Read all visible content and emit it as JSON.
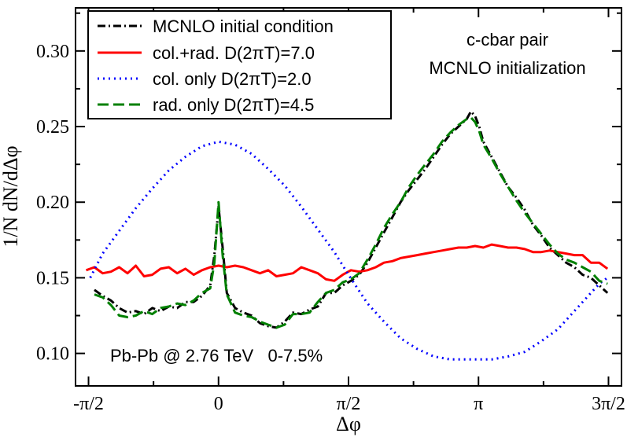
{
  "chart_data": {
    "type": "line",
    "xlabel": "Δφ",
    "ylabel": "1/N dN/dΔφ",
    "xlim": [
      -1.7279,
      4.8695
    ],
    "ylim": [
      0.0785,
      0.3285
    ],
    "x_ticks": [
      {
        "value": -1.5708,
        "label": "-π/2"
      },
      {
        "value": 0,
        "label": "0"
      },
      {
        "value": 1.5708,
        "label": "π/2"
      },
      {
        "value": 3.1416,
        "label": "π"
      },
      {
        "value": 4.7124,
        "label": "3π/2"
      }
    ],
    "y_ticks": [
      {
        "value": 0.1,
        "label": "0.10"
      },
      {
        "value": 0.15,
        "label": "0.15"
      },
      {
        "value": 0.2,
        "label": "0.20"
      },
      {
        "value": 0.25,
        "label": "0.25"
      },
      {
        "value": 0.3,
        "label": "0.30"
      }
    ],
    "annotations": [
      "c-cbar pair",
      "MCNLO initialization",
      "Pb-Pb @ 2.76 TeV   0-7.5%"
    ],
    "series": [
      {
        "name": "MCNLO initial condition",
        "color": "#000000",
        "dash": "dash-dot",
        "x": [
          -1.5,
          -1.4,
          -1.3,
          -1.2,
          -1.1,
          -1.0,
          -0.9,
          -0.8,
          -0.7,
          -0.6,
          -0.5,
          -0.4,
          -0.3,
          -0.2,
          -0.1,
          -0.05,
          0.0,
          0.05,
          0.1,
          0.2,
          0.3,
          0.4,
          0.5,
          0.6,
          0.7,
          0.8,
          0.9,
          1.0,
          1.1,
          1.2,
          1.3,
          1.4,
          1.5,
          1.6,
          1.7,
          1.8,
          1.9,
          2.0,
          2.1,
          2.2,
          2.3,
          2.4,
          2.5,
          2.6,
          2.7,
          2.8,
          2.9,
          3.0,
          3.05,
          3.1,
          3.15,
          3.2,
          3.3,
          3.4,
          3.5,
          3.6,
          3.7,
          3.8,
          3.9,
          4.0,
          4.1,
          4.2,
          4.3,
          4.4,
          4.5,
          4.6,
          4.7
        ],
        "y": [
          0.142,
          0.138,
          0.135,
          0.13,
          0.127,
          0.128,
          0.126,
          0.13,
          0.128,
          0.131,
          0.13,
          0.134,
          0.134,
          0.138,
          0.145,
          0.165,
          0.197,
          0.17,
          0.14,
          0.13,
          0.127,
          0.125,
          0.12,
          0.118,
          0.117,
          0.121,
          0.127,
          0.126,
          0.129,
          0.131,
          0.14,
          0.14,
          0.145,
          0.148,
          0.152,
          0.16,
          0.17,
          0.18,
          0.19,
          0.2,
          0.208,
          0.215,
          0.222,
          0.23,
          0.238,
          0.245,
          0.25,
          0.255,
          0.26,
          0.257,
          0.25,
          0.24,
          0.23,
          0.22,
          0.21,
          0.203,
          0.195,
          0.185,
          0.178,
          0.17,
          0.165,
          0.16,
          0.157,
          0.152,
          0.15,
          0.145,
          0.14
        ]
      },
      {
        "name": "col.+rad. D(2πT)=7.0",
        "color": "#ff0000",
        "dash": "solid",
        "x": [
          -1.6,
          -1.5,
          -1.4,
          -1.3,
          -1.2,
          -1.1,
          -1.0,
          -0.9,
          -0.8,
          -0.7,
          -0.6,
          -0.5,
          -0.4,
          -0.3,
          -0.2,
          -0.1,
          0.0,
          0.1,
          0.2,
          0.3,
          0.4,
          0.5,
          0.6,
          0.7,
          0.8,
          0.9,
          1.0,
          1.1,
          1.2,
          1.3,
          1.4,
          1.5,
          1.6,
          1.7,
          1.8,
          1.9,
          2.0,
          2.1,
          2.2,
          2.3,
          2.4,
          2.5,
          2.6,
          2.7,
          2.8,
          2.9,
          3.0,
          3.1,
          3.2,
          3.3,
          3.4,
          3.5,
          3.6,
          3.7,
          3.8,
          3.9,
          4.0,
          4.1,
          4.2,
          4.3,
          4.4,
          4.5,
          4.6,
          4.7
        ],
        "y": [
          0.155,
          0.157,
          0.153,
          0.154,
          0.157,
          0.153,
          0.158,
          0.151,
          0.152,
          0.156,
          0.157,
          0.153,
          0.156,
          0.152,
          0.155,
          0.157,
          0.158,
          0.157,
          0.158,
          0.157,
          0.155,
          0.153,
          0.155,
          0.151,
          0.152,
          0.153,
          0.157,
          0.155,
          0.153,
          0.149,
          0.148,
          0.152,
          0.155,
          0.154,
          0.155,
          0.157,
          0.16,
          0.161,
          0.163,
          0.164,
          0.165,
          0.166,
          0.167,
          0.168,
          0.169,
          0.17,
          0.17,
          0.171,
          0.17,
          0.172,
          0.171,
          0.17,
          0.17,
          0.169,
          0.167,
          0.167,
          0.168,
          0.167,
          0.166,
          0.165,
          0.165,
          0.16,
          0.16,
          0.156
        ]
      },
      {
        "name": "col. only D(2πT)=2.0",
        "color": "#0000ff",
        "dash": "dotted",
        "x": [
          -1.55,
          -1.4,
          -1.2,
          -1.0,
          -0.8,
          -0.6,
          -0.4,
          -0.2,
          0.0,
          0.2,
          0.4,
          0.6,
          0.8,
          1.0,
          1.2,
          1.4,
          1.5708,
          1.8,
          2.0,
          2.2,
          2.4,
          2.6,
          2.8,
          3.0,
          3.1416,
          3.3,
          3.5,
          3.7,
          3.9,
          4.1,
          4.3,
          4.5,
          4.6,
          4.7
        ],
        "y": [
          0.15,
          0.166,
          0.181,
          0.196,
          0.209,
          0.221,
          0.23,
          0.237,
          0.24,
          0.238,
          0.232,
          0.222,
          0.211,
          0.197,
          0.182,
          0.167,
          0.152,
          0.133,
          0.121,
          0.11,
          0.103,
          0.098,
          0.096,
          0.096,
          0.096,
          0.096,
          0.098,
          0.101,
          0.108,
          0.116,
          0.128,
          0.14,
          0.146,
          0.15
        ]
      },
      {
        "name": "rad. only D(2πT)=4.5",
        "color": "#008000",
        "dash": "dashed",
        "x": [
          -1.5,
          -1.4,
          -1.3,
          -1.2,
          -1.1,
          -1.0,
          -0.9,
          -0.8,
          -0.7,
          -0.6,
          -0.5,
          -0.4,
          -0.3,
          -0.2,
          -0.1,
          -0.05,
          0.0,
          0.05,
          0.1,
          0.2,
          0.3,
          0.4,
          0.5,
          0.6,
          0.7,
          0.8,
          0.9,
          1.0,
          1.1,
          1.2,
          1.3,
          1.4,
          1.5,
          1.6,
          1.7,
          1.8,
          1.9,
          2.0,
          2.1,
          2.2,
          2.3,
          2.4,
          2.5,
          2.6,
          2.7,
          2.8,
          2.9,
          3.0,
          3.05,
          3.1,
          3.15,
          3.2,
          3.3,
          3.4,
          3.5,
          3.6,
          3.7,
          3.8,
          3.9,
          4.0,
          4.1,
          4.2,
          4.3,
          4.4,
          4.5,
          4.6,
          4.7
        ],
        "y": [
          0.139,
          0.137,
          0.132,
          0.125,
          0.124,
          0.125,
          0.128,
          0.126,
          0.13,
          0.131,
          0.133,
          0.132,
          0.135,
          0.14,
          0.143,
          0.16,
          0.2,
          0.165,
          0.139,
          0.127,
          0.125,
          0.124,
          0.121,
          0.119,
          0.117,
          0.119,
          0.126,
          0.126,
          0.127,
          0.134,
          0.14,
          0.142,
          0.147,
          0.149,
          0.153,
          0.162,
          0.172,
          0.183,
          0.192,
          0.2,
          0.21,
          0.218,
          0.225,
          0.232,
          0.24,
          0.246,
          0.251,
          0.255,
          0.256,
          0.253,
          0.247,
          0.238,
          0.229,
          0.219,
          0.21,
          0.201,
          0.193,
          0.186,
          0.179,
          0.172,
          0.166,
          0.162,
          0.16,
          0.157,
          0.154,
          0.148,
          0.146
        ]
      }
    ]
  }
}
